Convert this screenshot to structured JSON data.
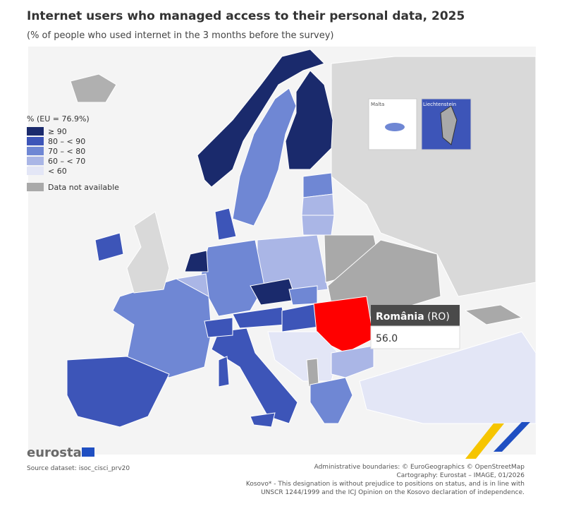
{
  "header": {
    "title": "Internet users who managed access to their personal data, 2025",
    "subtitle": "(% of people who used internet in the 3 months before the survey)"
  },
  "legend": {
    "title": "% (EU = 76.9%)",
    "items": [
      {
        "label": "≥ 90",
        "color": "#1a2a6c"
      },
      {
        "label": "80 – < 90",
        "color": "#3d55b8"
      },
      {
        "label": "70 – < 80",
        "color": "#6f87d4"
      },
      {
        "label": "60 – < 70",
        "color": "#aab6e6"
      },
      {
        "label": "< 60",
        "color": "#e3e6f6"
      }
    ],
    "na": {
      "label": "Data not available",
      "color": "#a9a9a9"
    }
  },
  "insets": [
    "Malta",
    "Liechtenstein"
  ],
  "tooltip": {
    "country": "România",
    "code": "(RO)",
    "value": "56.0"
  },
  "footer": {
    "brand": "eurostat",
    "source": "Source dataset: isoc_cisci_prv20",
    "credits": [
      "Administrative boundaries: © EuroGeographics © OpenStreetMap",
      "Cartography: Eurostat – IMAGE, 01/2026",
      "Kosovo* - This designation is without prejudice to positions on status, and is in line with",
      "UNSCR 1244/1999 and the ICJ Opinion on the Kosovo declaration of independence."
    ]
  }
}
